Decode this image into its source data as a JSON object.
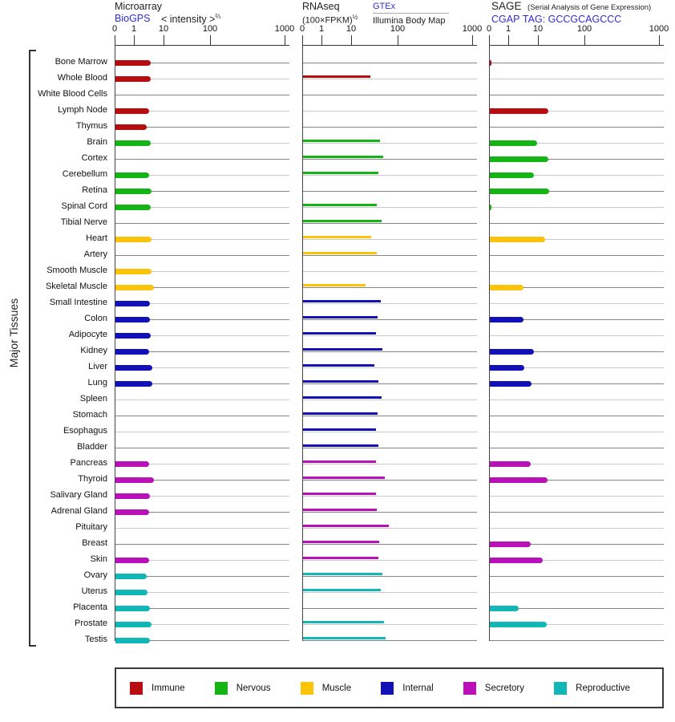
{
  "side_label": "Major Tissues",
  "panels": [
    {
      "title": "Microarray",
      "link": "BioGPS",
      "axis_label": "< intensity >",
      "axis_label_exp": "⅔"
    },
    {
      "title": "RNAseq",
      "axis_label": "(100×FPKM)",
      "axis_label_exp": "½",
      "link": "GTEx",
      "sublink_label": "Illumina Body Map"
    },
    {
      "title": "SAGE",
      "title_note": "(Serial Analysis of Gene Expression)",
      "link": "CGAP",
      "tag_label": "TAG: GCCGCAGCCC"
    }
  ],
  "chart_data": {
    "type": "bar",
    "orientation": "horizontal",
    "scale": "log-like (anchors 0,1,10,100,1000)",
    "axis_ticks": [
      "0",
      "1",
      "10",
      "100",
      "1000"
    ],
    "categories": [
      "Bone Marrow",
      "Whole Blood",
      "White Blood Cells",
      "Lymph Node",
      "Thymus",
      "Brain",
      "Cortex",
      "Cerebellum",
      "Retina",
      "Spinal Cord",
      "Tibial Nerve",
      "Heart",
      "Artery",
      "Smooth Muscle",
      "Skeletal Muscle",
      "Small Intestine",
      "Colon",
      "Adipocyte",
      "Kidney",
      "Liver",
      "Lung",
      "Spleen",
      "Stomach",
      "Esophagus",
      "Bladder",
      "Pancreas",
      "Thyroid",
      "Salivary Gland",
      "Adrenal Gland",
      "Pituitary",
      "Breast",
      "Skin",
      "Ovary",
      "Uterus",
      "Placenta",
      "Prostate",
      "Testis"
    ],
    "groups": [
      "Immune",
      "Immune",
      "Immune",
      "Immune",
      "Immune",
      "Nervous",
      "Nervous",
      "Nervous",
      "Nervous",
      "Nervous",
      "Nervous",
      "Muscle",
      "Muscle",
      "Muscle",
      "Muscle",
      "Internal",
      "Internal",
      "Internal",
      "Internal",
      "Internal",
      "Internal",
      "Internal",
      "Internal",
      "Internal",
      "Internal",
      "Secretory",
      "Secretory",
      "Secretory",
      "Secretory",
      "Secretory",
      "Secretory",
      "Secretory",
      "Reproductive",
      "Reproductive",
      "Reproductive",
      "Reproductive",
      "Reproductive"
    ],
    "series": [
      {
        "name": "Microarray (BioGPS) intensity^(2/3)",
        "values": [
          3.5,
          3.5,
          null,
          3,
          2.5,
          3.5,
          null,
          3,
          3.6,
          3.4,
          null,
          3.7,
          null,
          3.6,
          4.4,
          3.2,
          3.2,
          3.4,
          3,
          3.9,
          3.9,
          null,
          null,
          null,
          null,
          3,
          4.4,
          3.3,
          3.1,
          null,
          null,
          3.1,
          2.5,
          2.7,
          3.3,
          3.7,
          3.3
        ]
      },
      {
        "name": "RNAseq GTEx / Illumina Body Map (100×FPKM)^(1/2)",
        "values": [
          null,
          25,
          null,
          null,
          null,
          40,
          47,
          37,
          null,
          34,
          43,
          26,
          34,
          null,
          20,
          42,
          35,
          33,
          45,
          30,
          37,
          43,
          35,
          33,
          37,
          33,
          51,
          33,
          34,
          62,
          39,
          37,
          45,
          42,
          null,
          48,
          53
        ]
      },
      {
        "name": "SAGE CGAP TAG: GCCGCAGCCC",
        "values": [
          0.1,
          null,
          null,
          16,
          null,
          9,
          16,
          7,
          17,
          0.1,
          null,
          14,
          null,
          null,
          3,
          null,
          3,
          null,
          7,
          3.3,
          5.7,
          null,
          null,
          null,
          null,
          5.4,
          15.5,
          null,
          null,
          null,
          5.4,
          12,
          null,
          null,
          2.1,
          15,
          null
        ]
      }
    ],
    "group_colors": {
      "Immune": "#b70d10",
      "Nervous": "#14b414",
      "Muscle": "#fcc30b",
      "Internal": "#1111b7",
      "Secretory": "#b711b7",
      "Reproductive": "#11b7b7"
    }
  },
  "legend": {
    "items": [
      {
        "label": "Immune",
        "color": "#b70d10"
      },
      {
        "label": "Nervous",
        "color": "#14b414"
      },
      {
        "label": "Muscle",
        "color": "#fcc30b"
      },
      {
        "label": "Internal",
        "color": "#1111b7"
      },
      {
        "label": "Secretory",
        "color": "#b711b7"
      },
      {
        "label": "Reproductive",
        "color": "#11b7b7"
      }
    ]
  }
}
